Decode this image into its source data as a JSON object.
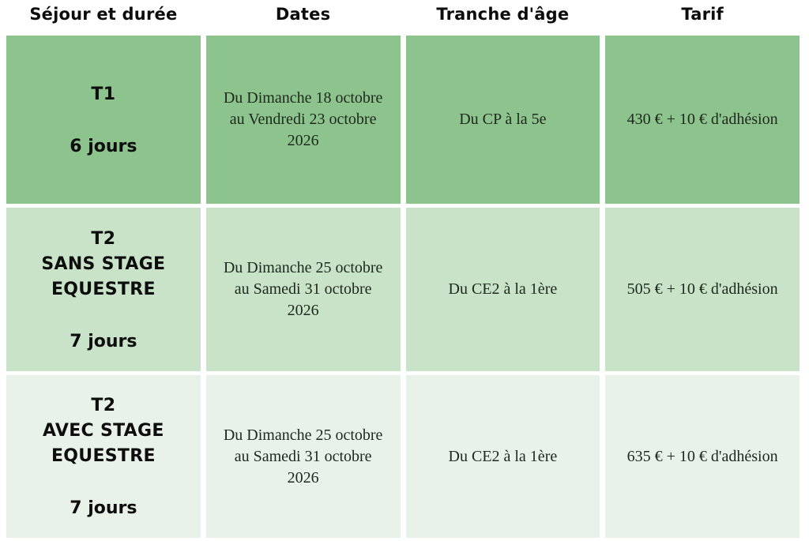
{
  "page": {
    "background": "#FFFFFF",
    "gutter_color": "#FFFFFF"
  },
  "table": {
    "headers": [
      {
        "label": "Séjour et durée"
      },
      {
        "label": "Dates"
      },
      {
        "label": "Tranche d'âge"
      },
      {
        "label": "Tarif"
      }
    ],
    "rows": [
      {
        "bg": "#8DC48D",
        "title_lines": [
          "T1"
        ],
        "duration": "6 jours",
        "dates_lines": [
          "Du Dimanche 18 octobre",
          "au Vendredi 23 octobre",
          "2026"
        ],
        "age": "Du CP à la 5e",
        "price": "430 € + 10 € d'adhésion"
      },
      {
        "bg": "#C8E3C8",
        "title_lines": [
          "T2",
          "SANS STAGE",
          "EQUESTRE"
        ],
        "duration": "7 jours",
        "dates_lines": [
          "Du Dimanche 25 octobre",
          "au Samedi 31 octobre",
          "2026"
        ],
        "age": "Du CE2 à la 1ère",
        "price": "505 € + 10 € d'adhésion"
      },
      {
        "bg": "#E9F2E9",
        "title_lines": [
          "T2",
          "AVEC STAGE",
          "EQUESTRE"
        ],
        "duration": "7 jours",
        "dates_lines": [
          "Du Dimanche 25 octobre",
          "au Samedi 31 octobre",
          "2026"
        ],
        "age": "Du CE2 à la 1ère",
        "price": "635 € + 10 € d'adhésion"
      }
    ]
  }
}
